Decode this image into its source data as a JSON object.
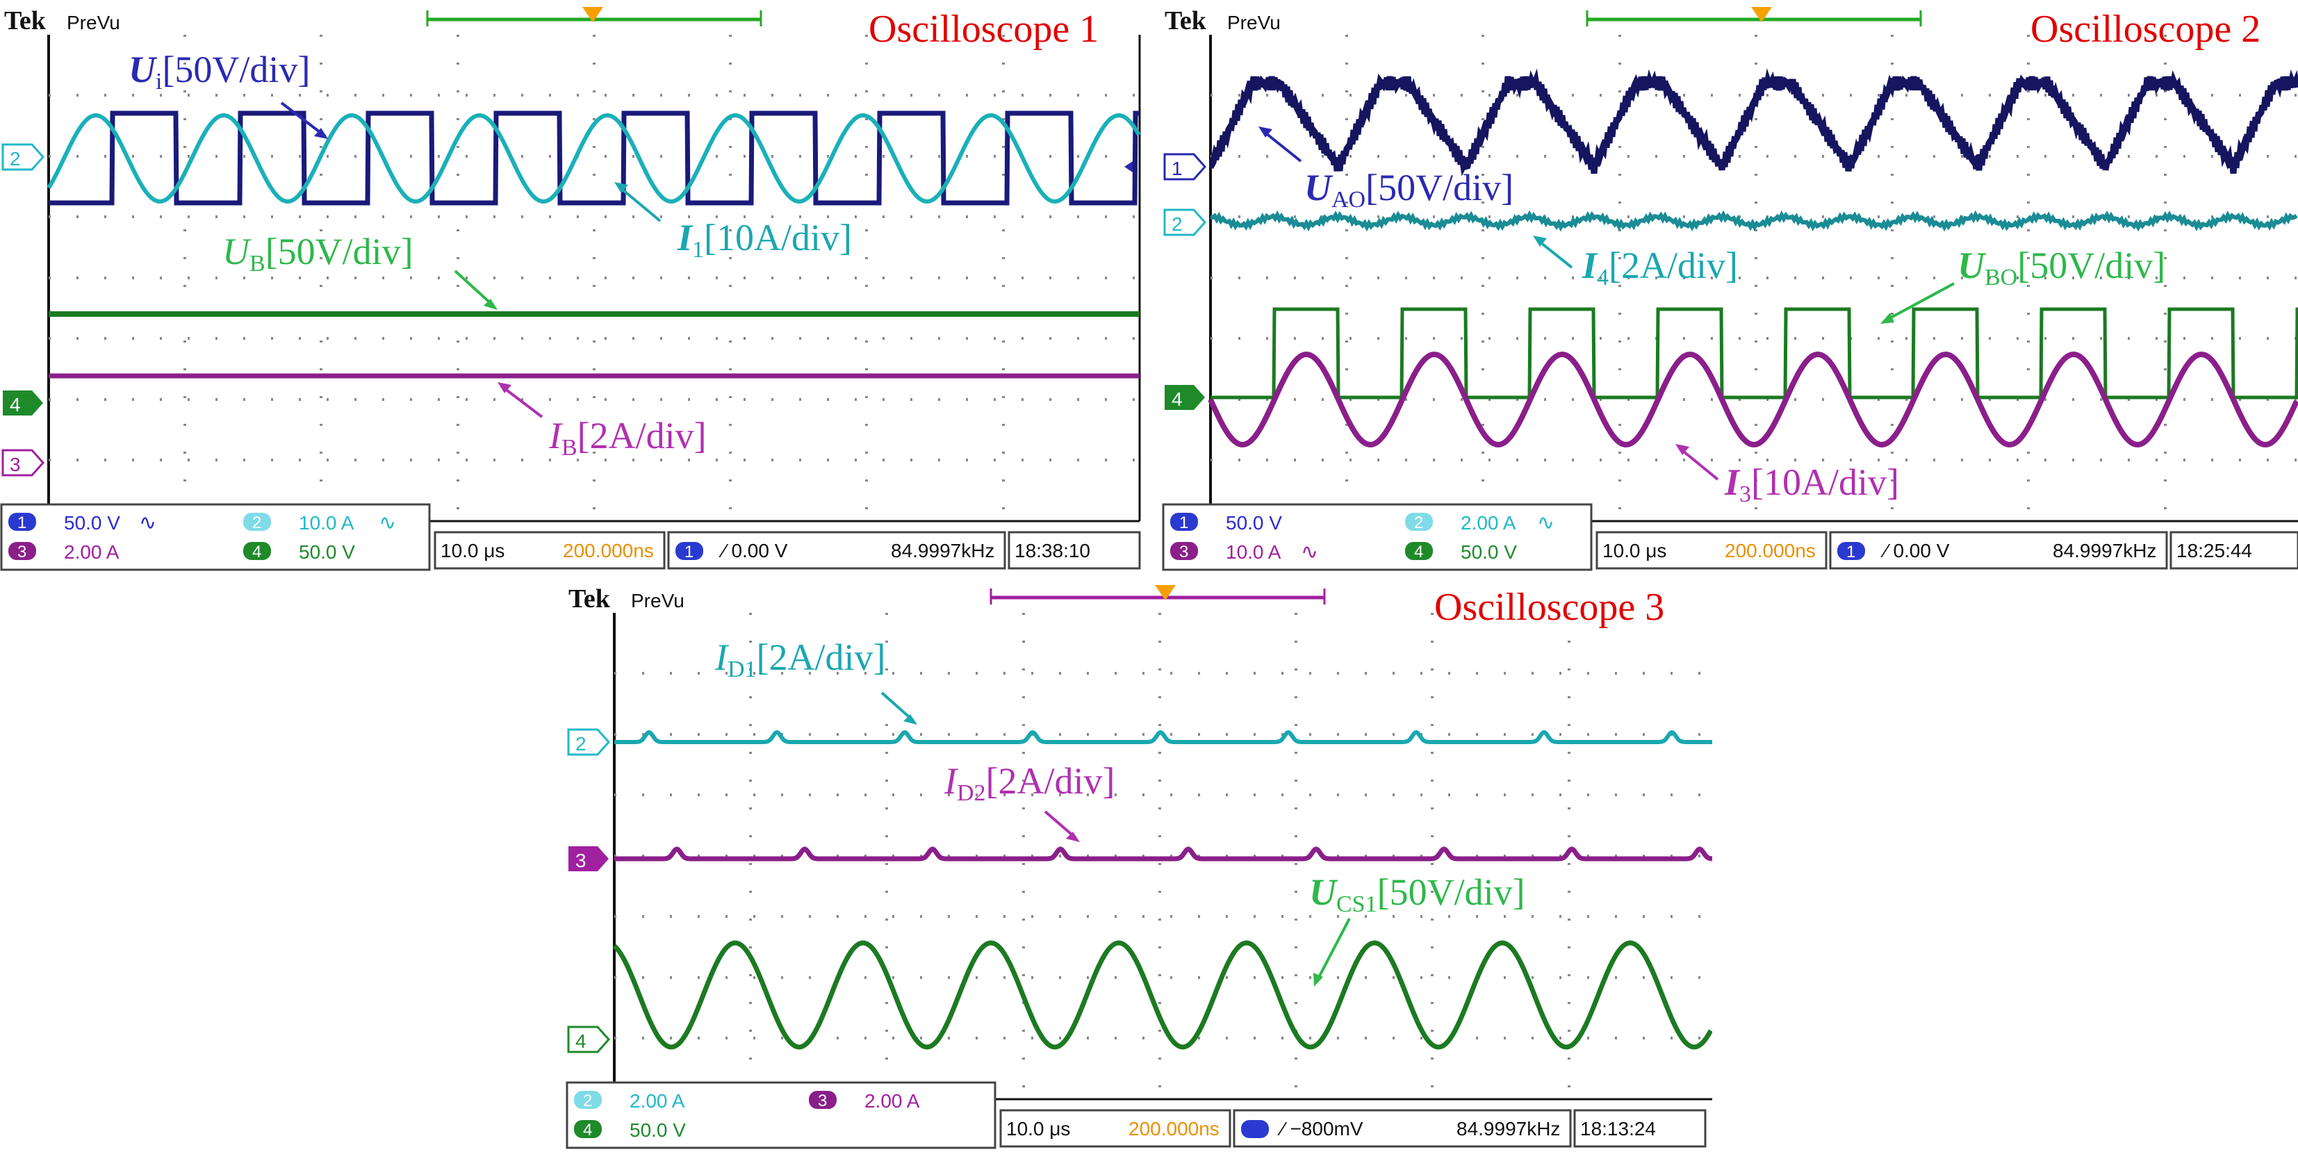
{
  "oscilloscopes": [
    {
      "id": "osc1",
      "brand": "Tek",
      "mode": "PreVu",
      "title": "Oscilloscope 1",
      "channel_markers": [
        {
          "num": "2",
          "color": "#21b8c8"
        },
        {
          "num": "4",
          "color": "#1f8a2a"
        },
        {
          "num": "3",
          "color": "#a020a0"
        }
      ],
      "annotations": [
        {
          "main": "U",
          "main_bold": true,
          "sub": "i",
          "rest": "[50V/div]",
          "color": "#2a2ab0"
        },
        {
          "main": "I",
          "main_bold": true,
          "sub": "1",
          "rest": "[10A/div]",
          "color": "#1aa7b0"
        },
        {
          "main": "U",
          "main_bold": false,
          "sub": "B",
          "rest": "[50V/div]",
          "color": "#2db84a"
        },
        {
          "main": "I",
          "main_bold": false,
          "sub": "B",
          "rest": "[2A/div]",
          "color": "#b030b0"
        }
      ],
      "status": {
        "ch_a": {
          "num": "1",
          "value": "50.0 V",
          "symbol": "∿"
        },
        "ch_b": {
          "num": "2",
          "value": "10.0 A",
          "symbol": "∿"
        },
        "ch_c": {
          "num": "3",
          "value": "2.00 A",
          "symbol": ""
        },
        "ch_d": {
          "num": "4",
          "value": "50.0 V",
          "symbol": ""
        },
        "timebase": "10.0 μs",
        "sample": "200.000ns",
        "trigger_ch": "1",
        "trigger": "⁄ 0.00 V",
        "freq": "84.9997kHz",
        "time": "18:38:10"
      }
    },
    {
      "id": "osc2",
      "brand": "Tek",
      "mode": "PreVu",
      "title": "Oscilloscope 2",
      "channel_markers": [
        {
          "num": "1",
          "color": "#2a2ab0"
        },
        {
          "num": "2",
          "color": "#21b8c8"
        },
        {
          "num": "4",
          "color": "#1f8a2a"
        }
      ],
      "annotations": [
        {
          "main": "U",
          "main_bold": true,
          "sub": "AO",
          "rest": "[50V/div]",
          "color": "#2a2ab0"
        },
        {
          "main": "I",
          "main_bold": true,
          "sub": "4",
          "rest": "[2A/div]",
          "color": "#1aa7b0"
        },
        {
          "main": "U",
          "main_bold": true,
          "sub": "BO",
          "rest": "[50V/div]",
          "color": "#2db84a"
        },
        {
          "main": "I",
          "main_bold": true,
          "sub": "3",
          "rest": "[10A/div]",
          "color": "#b030b0"
        }
      ],
      "status": {
        "ch_a": {
          "num": "1",
          "value": "50.0 V",
          "symbol": ""
        },
        "ch_b": {
          "num": "2",
          "value": "2.00 A",
          "symbol": "∿"
        },
        "ch_c": {
          "num": "3",
          "value": "10.0 A",
          "symbol": "∿"
        },
        "ch_d": {
          "num": "4",
          "value": "50.0 V",
          "symbol": ""
        },
        "timebase": "10.0 μs",
        "sample": "200.000ns",
        "trigger_ch": "1",
        "trigger": "⁄ 0.00 V",
        "freq": "84.9997kHz",
        "time": "18:25:44"
      }
    },
    {
      "id": "osc3",
      "brand": "Tek",
      "mode": "PreVu",
      "title": "Oscilloscope 3",
      "channel_markers": [
        {
          "num": "2",
          "color": "#21b8c8"
        },
        {
          "num": "3",
          "color": "#a020a0"
        },
        {
          "num": "4",
          "color": "#1f8a2a"
        }
      ],
      "annotations": [
        {
          "main": "I",
          "main_bold": false,
          "sub": "D1",
          "rest": "[2A/div]",
          "color": "#1aa7b0"
        },
        {
          "main": "I",
          "main_bold": false,
          "sub": "D2",
          "rest": "[2A/div]",
          "color": "#b030b0"
        },
        {
          "main": "U",
          "main_bold": true,
          "sub": "CS1",
          "rest": "[50V/div]",
          "color": "#2db84a"
        }
      ],
      "status": {
        "ch_a": {
          "num": "2",
          "value": "2.00 A",
          "symbol": ""
        },
        "ch_b": {
          "num": "3",
          "value": "2.00 A",
          "symbol": ""
        },
        "ch_c": {
          "num": "4",
          "value": "50.0 V",
          "symbol": ""
        },
        "timebase": "10.0 μs",
        "sample": "200.000ns",
        "trigger_ch": "",
        "trigger": "⁄ −800mV",
        "freq": "84.9997kHz",
        "time": "18:13:24"
      }
    }
  ]
}
